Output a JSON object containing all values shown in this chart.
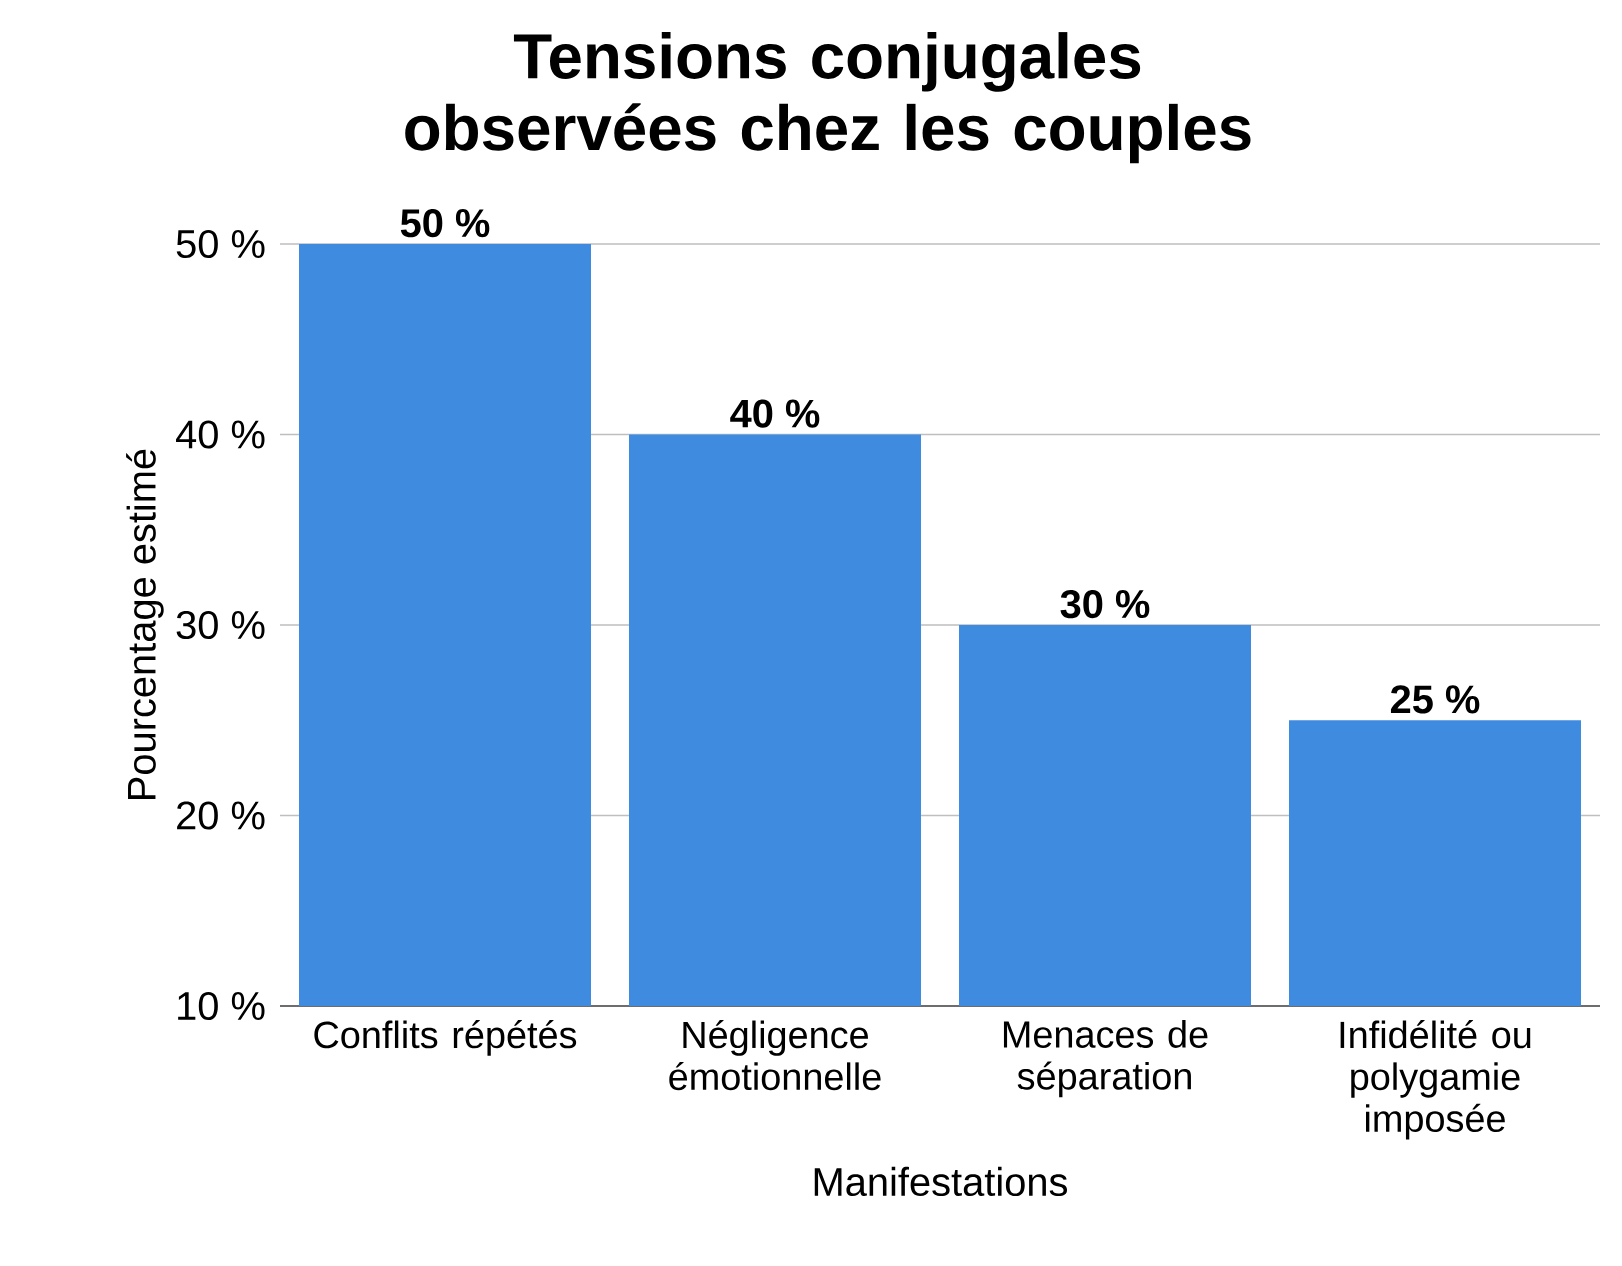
{
  "chart_data": {
    "type": "bar",
    "title": "Tensions conjugales observées chez les couples",
    "xlabel": "Manifestations",
    "ylabel": "Pourcentage estimé",
    "categories": [
      "Conflits répétés",
      "Négligence émotionnelle",
      "Menaces de séparation",
      "Infidélité ou polygamie imposée"
    ],
    "values": [
      50,
      40,
      30,
      25
    ],
    "value_labels": [
      "50 %",
      "40 %",
      "30 %",
      "25 %"
    ],
    "color": "#3f8be0",
    "ylim": [
      10,
      50
    ],
    "yticks": [
      {
        "value": 10,
        "label": "10 %"
      },
      {
        "value": 20,
        "label": "20 %"
      },
      {
        "value": 30,
        "label": "30 %"
      },
      {
        "value": 40,
        "label": "40 %"
      },
      {
        "value": 50,
        "label": "50 %"
      }
    ],
    "grid": "y"
  }
}
